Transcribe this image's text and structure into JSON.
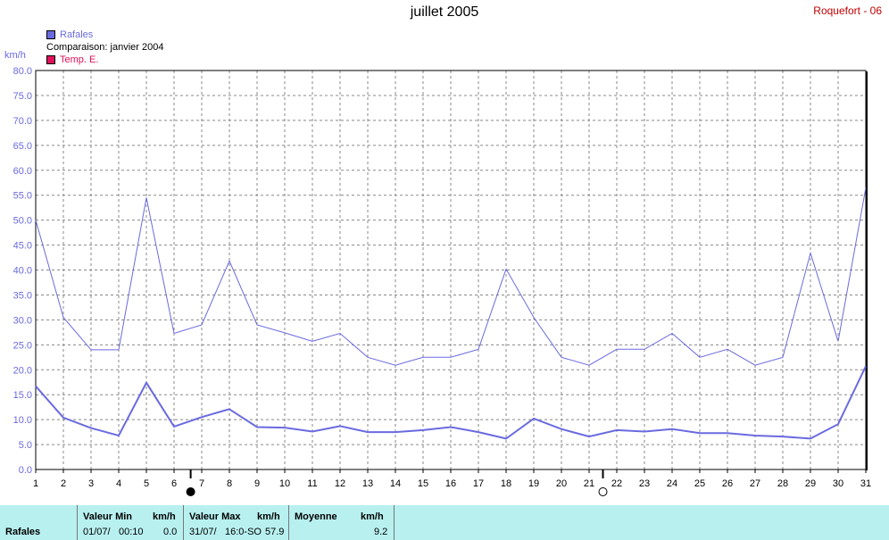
{
  "title": "juillet 2005",
  "station": "Roquefort - 06",
  "legend": [
    {
      "label": "Rafales",
      "color": "#6a6ae0",
      "swatch": true
    },
    {
      "label": "Comparaison: janvier 2004",
      "color": "#000000",
      "swatch": false
    },
    {
      "label": "Temp. E.",
      "color": "#e0105a",
      "swatch": true
    }
  ],
  "colors": {
    "rafales": "#6a6ae0",
    "temp": "#e0105a"
  },
  "chart_data": {
    "type": "line",
    "ylabel": "km/h",
    "ylim": [
      0,
      80
    ],
    "yticks": [
      "0.0",
      "5.0",
      "10.0",
      "15.0",
      "20.0",
      "25.0",
      "30.0",
      "35.0",
      "40.0",
      "45.0",
      "50.0",
      "55.0",
      "60.0",
      "65.0",
      "70.0",
      "75.0",
      "80.0"
    ],
    "x": [
      1,
      2,
      3,
      4,
      5,
      6,
      7,
      8,
      9,
      10,
      11,
      12,
      13,
      14,
      15,
      16,
      17,
      18,
      19,
      20,
      21,
      22,
      23,
      24,
      25,
      26,
      27,
      28,
      29,
      30,
      31
    ],
    "grid": true,
    "series": [
      {
        "name": "Rafales",
        "values": [
          50,
          30.5,
          24,
          24,
          54.5,
          27.3,
          29,
          41.8,
          29,
          27.4,
          25.7,
          27.3,
          22.5,
          20.9,
          22.5,
          22.5,
          24.1,
          40.2,
          30.5,
          22.5,
          20.9,
          24.1,
          24.1,
          27.3,
          22.5,
          24.1,
          20.9,
          22.5,
          43.4,
          25.7,
          56.5
        ]
      },
      {
        "values": [
          16.7,
          10.4,
          8.3,
          6.8,
          17.4,
          8.6,
          10.5,
          12.1,
          8.5,
          8.4,
          7.6,
          8.7,
          7.5,
          7.5,
          7.9,
          8.5,
          7.5,
          6.2,
          10.2,
          8.1,
          6.6,
          7.9,
          7.6,
          8.1,
          7.3,
          7.3,
          6.8,
          6.6,
          6.2,
          9.1,
          20.7
        ]
      }
    ],
    "moon_markers": [
      {
        "label": "new-moon",
        "x": 6.6
      },
      {
        "label": "full-moon",
        "x": 21.5
      }
    ]
  },
  "stats": {
    "row_label": "Rafales",
    "min_header": "Valeur Min",
    "min_unit": "km/h",
    "min_date": "01/07/",
    "min_time": "00:10",
    "min_value": "0.0",
    "max_header": "Valeur Max",
    "max_unit": "km/h",
    "max_date": "31/07/",
    "max_time": "16:0-SO",
    "max_value": "57.9",
    "avg_header": "Moyenne",
    "avg_unit": "km/h",
    "avg_value": "9.2"
  }
}
